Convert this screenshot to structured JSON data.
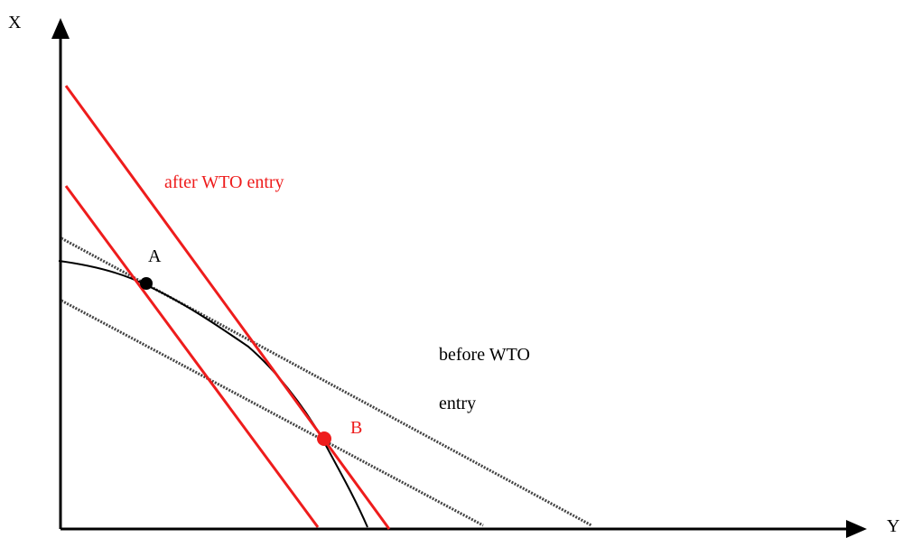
{
  "axes": {
    "x_label": "X",
    "y_label": "Y"
  },
  "points": {
    "a_label": "A",
    "b_label": "B"
  },
  "annotations": {
    "after_wto": "after WTO entry",
    "before_wto_line1": "before WTO",
    "before_wto_line2": "entry"
  },
  "colors": {
    "axis": "#000000",
    "curve": "#000000",
    "after_lines": "#ee1c1c",
    "before_lines": "#444444",
    "point_a": "#000000",
    "point_b": "#ee1c1c"
  }
}
